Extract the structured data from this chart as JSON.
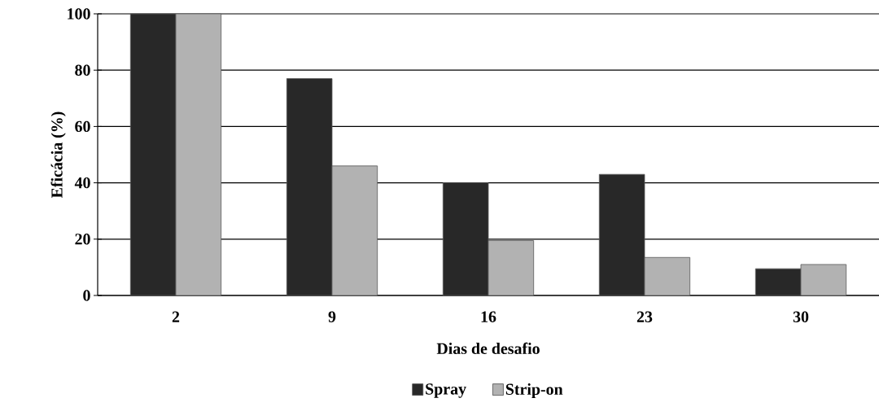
{
  "chart_data": {
    "type": "bar",
    "xlabel": "Dias de desafio",
    "ylabel": "Eficácia (%)",
    "categories": [
      "2",
      "9",
      "16",
      "23",
      "30"
    ],
    "series": [
      {
        "name": "Spray",
        "color": "#282828",
        "values": [
          100,
          77,
          40,
          43,
          9.5
        ]
      },
      {
        "name": "Strip-on",
        "color": "#b2b2b2",
        "values": [
          100,
          46,
          19.5,
          13.5,
          11
        ]
      }
    ],
    "ylim": [
      0,
      100
    ],
    "yticks": [
      0,
      20,
      40,
      60,
      80,
      100
    ],
    "grid": "y",
    "legend": "bottom"
  }
}
